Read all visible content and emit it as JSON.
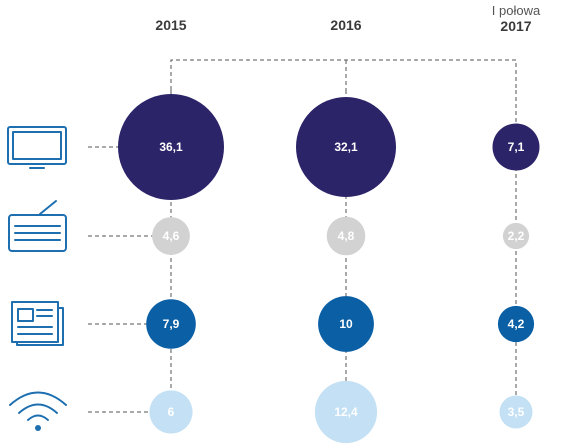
{
  "chart_data": {
    "type": "bubble",
    "columns": [
      {
        "label": "2015",
        "sublabel": ""
      },
      {
        "label": "2016",
        "sublabel": ""
      },
      {
        "label": "2017",
        "sublabel": "I połowa"
      }
    ],
    "rows": [
      {
        "icon": "tv-icon",
        "values": [
          "36,1",
          "32,1",
          "7,1"
        ],
        "amounts": [
          36.1,
          32.1,
          7.1
        ],
        "fill": "#2b2469",
        "text_color": "#ffffff"
      },
      {
        "icon": "radio-icon",
        "values": [
          "4,6",
          "4,8",
          "2,2"
        ],
        "amounts": [
          4.6,
          4.8,
          2.2
        ],
        "fill": "#d2d2d2",
        "text_color": "#ffffff"
      },
      {
        "icon": "newspaper-icon",
        "values": [
          "7,9",
          "10",
          "4,2"
        ],
        "amounts": [
          7.9,
          10,
          4.2
        ],
        "fill": "#0b5fa5",
        "text_color": "#ffffff"
      },
      {
        "icon": "wifi-icon",
        "values": [
          "6",
          "12,4",
          "3,5"
        ],
        "amounts": [
          6,
          12.4,
          3.5
        ],
        "fill": "#c3e0f4",
        "text_color": "#ffffff"
      }
    ],
    "colors": {
      "connector": "#555555",
      "icon": "#1e6fb0",
      "label": "#3a3a3a"
    }
  }
}
